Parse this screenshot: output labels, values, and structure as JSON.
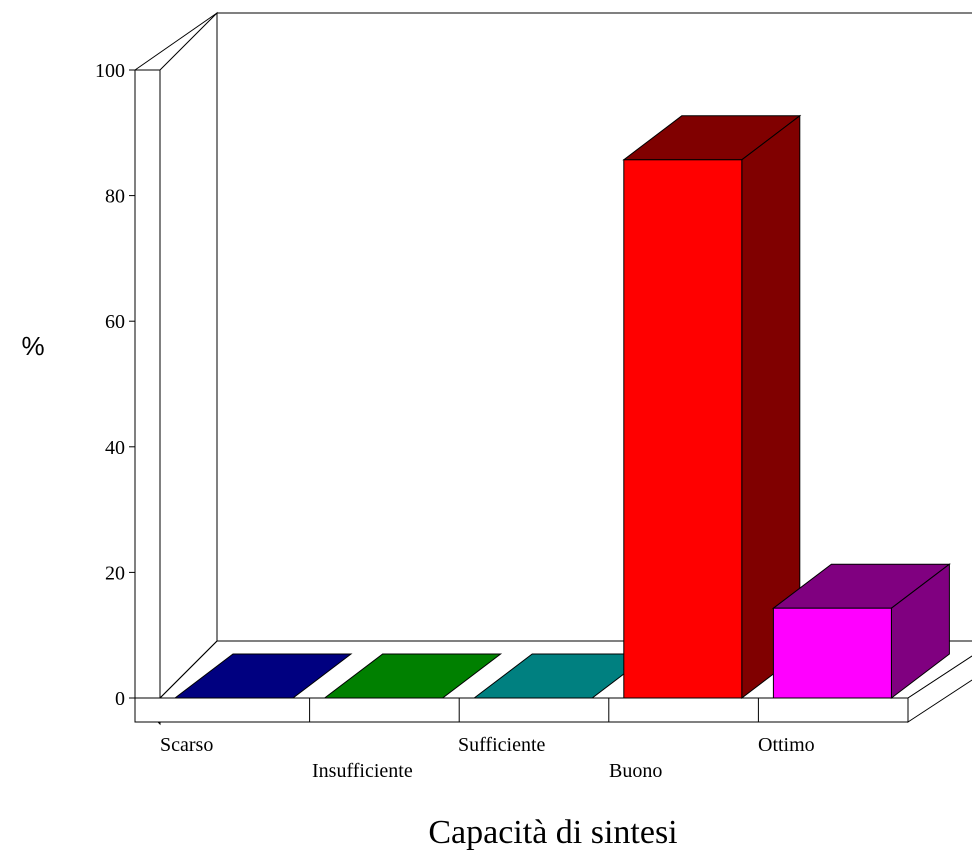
{
  "chart_data": {
    "type": "bar",
    "title": "",
    "xlabel": "Capacità di sintesi",
    "ylabel": "%",
    "ylim": [
      0,
      100
    ],
    "yticks": [
      0,
      20,
      40,
      60,
      80,
      100
    ],
    "categories": [
      "Scarso",
      "Insufficiente",
      "Sufficiente",
      "Buono",
      "Ottimo"
    ],
    "values": [
      0,
      0,
      0,
      85.7,
      14.3
    ],
    "colors": {
      "front": [
        "#000080",
        "#008000",
        "#008080",
        "#FF0000",
        "#FF00FF"
      ],
      "top": [
        "#000080",
        "#008000",
        "#008080",
        "#800000",
        "#800080"
      ],
      "side": [
        "#000080",
        "#008000",
        "#008080",
        "#800000",
        "#800080"
      ]
    },
    "style": "3d-bar",
    "grid": false,
    "legend": "none"
  }
}
